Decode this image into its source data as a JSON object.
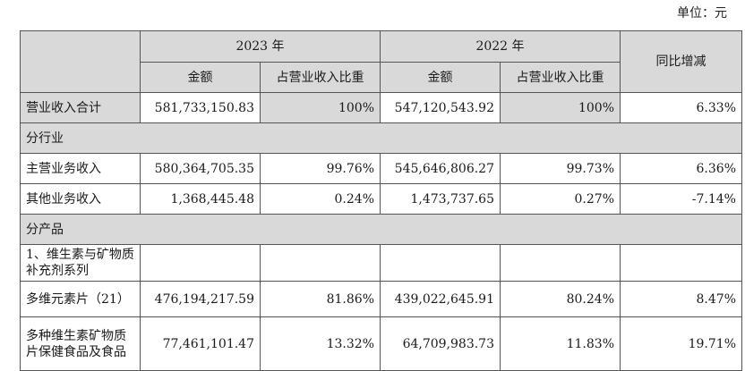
{
  "unit_label": "单位：元",
  "header": {
    "year1": "2023 年",
    "year2": "2022 年",
    "amount": "金额",
    "ratio": "占营业收入比重",
    "change": "同比增减"
  },
  "rows": {
    "total": {
      "label": "营业收入合计",
      "a2023": "581,733,150.83",
      "r2023": "100%",
      "a2022": "547,120,543.92",
      "r2022": "100%",
      "change": "6.33%"
    },
    "by_industry": {
      "label": "分行业"
    },
    "main": {
      "label": "主营业务收入",
      "a2023": "580,364,705.35",
      "r2023": "99.76%",
      "a2022": "545,646,806.27",
      "r2022": "99.73%",
      "change": "6.36%"
    },
    "other": {
      "label": "其他业务收入",
      "a2023": "1,368,445.48",
      "r2023": "0.24%",
      "a2022": "1,473,737.65",
      "r2022": "0.27%",
      "change": "-7.14%"
    },
    "by_product": {
      "label": "分产品"
    },
    "vitamin_series": {
      "label": "1、维生素与矿物质补充剂系列"
    },
    "multivit": {
      "label": "多维元素片（21）",
      "a2023": "476,194,217.59",
      "r2023": "81.86%",
      "a2022": "439,022,645.91",
      "r2022": "80.24%",
      "change": "8.47%"
    },
    "health_food": {
      "label": "多种维生素矿物质片保健食品及食品",
      "a2023": "77,461,101.47",
      "r2023": "13.32%",
      "a2022": "64,709,983.73",
      "r2022": "11.83%",
      "change": "19.71%"
    }
  }
}
